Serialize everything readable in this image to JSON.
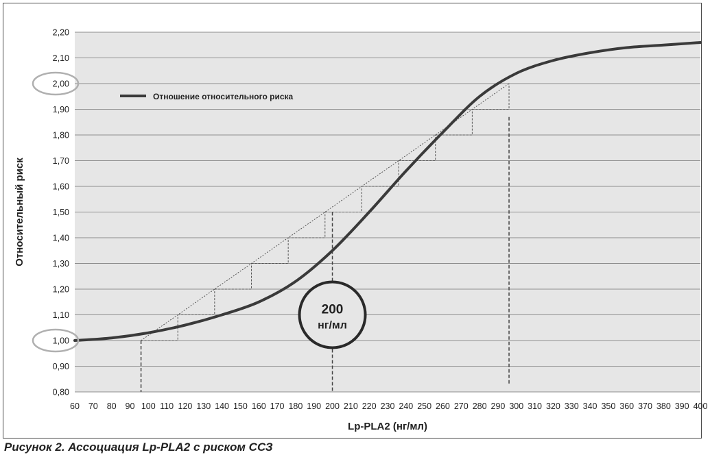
{
  "caption": "Рисунок 2. Ассоциация Lp-PLA2 с риском ССЗ",
  "colors": {
    "plot_bg": "#e6e6e6",
    "grid": "#8e8e8e",
    "curve": "#3a3a3a",
    "highlight_ellipse": "#b0b0b0"
  },
  "callout": {
    "line1": "200",
    "line2": "нг/мл",
    "x": 200,
    "y": 1.1
  },
  "highlighted_ticks": [
    1.0,
    2.0
  ],
  "chart_data": {
    "type": "line",
    "xlabel": "Lp-PLA2 (нг/мл)",
    "ylabel": "Относительный риск",
    "xlim": [
      60,
      400
    ],
    "ylim": [
      0.8,
      2.2
    ],
    "x_ticks": [
      60,
      70,
      80,
      90,
      100,
      110,
      120,
      130,
      140,
      150,
      160,
      170,
      180,
      190,
      200,
      210,
      220,
      230,
      240,
      250,
      260,
      270,
      280,
      290,
      300,
      310,
      320,
      330,
      340,
      350,
      360,
      370,
      380,
      390,
      400
    ],
    "y_ticks": [
      "0,80",
      "0,90",
      "1,00",
      "1,10",
      "1,20",
      "1,30",
      "1,40",
      "1,50",
      "1,60",
      "1,70",
      "1,80",
      "1,90",
      "2,00",
      "2,10",
      "2,20"
    ],
    "grid": "horizontal",
    "legend_position": "top-left",
    "series": [
      {
        "name": "Отношение относительного риска",
        "x": [
          60,
          80,
          100,
          120,
          140,
          160,
          180,
          200,
          220,
          240,
          260,
          280,
          300,
          320,
          340,
          360,
          380,
          400
        ],
        "y": [
          1.0,
          1.01,
          1.03,
          1.06,
          1.1,
          1.15,
          1.23,
          1.35,
          1.5,
          1.66,
          1.81,
          1.95,
          2.04,
          2.09,
          2.12,
          2.14,
          2.15,
          2.16
        ]
      }
    ],
    "step_guide": {
      "x": [
        96,
        116,
        136,
        156,
        176,
        196,
        216,
        236,
        256,
        276,
        296
      ],
      "y": [
        1.0,
        1.1,
        1.2,
        1.3,
        1.4,
        1.5,
        1.6,
        1.7,
        1.8,
        1.9,
        2.0
      ]
    },
    "reference_lines_x": [
      96,
      200,
      296
    ]
  }
}
